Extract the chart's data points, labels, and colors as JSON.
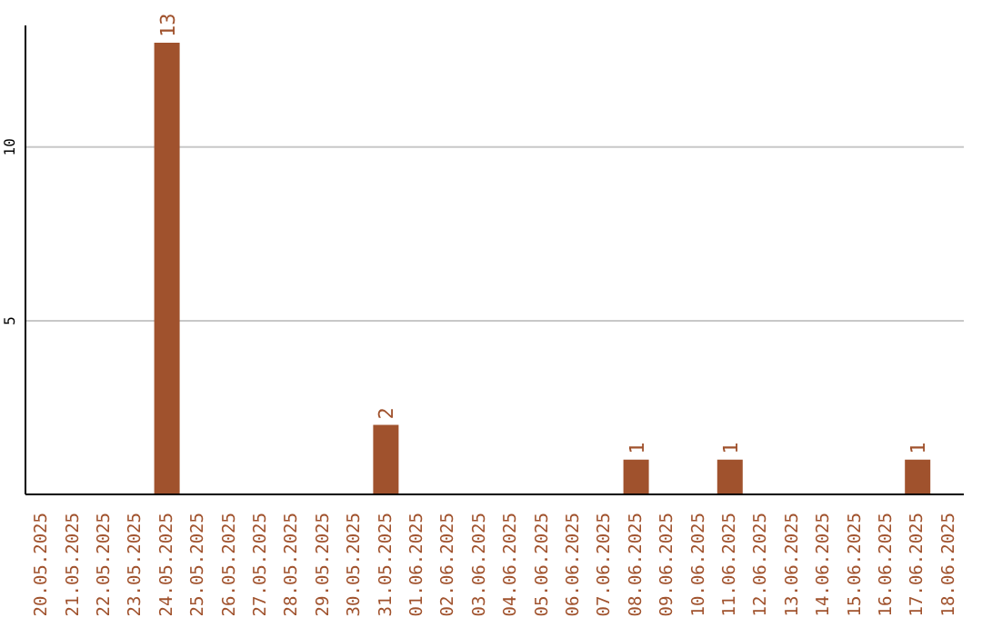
{
  "chart_data": {
    "type": "bar",
    "categories": [
      "20.05.2025",
      "21.05.2025",
      "22.05.2025",
      "23.05.2025",
      "24.05.2025",
      "25.05.2025",
      "26.05.2025",
      "27.05.2025",
      "28.05.2025",
      "29.05.2025",
      "30.05.2025",
      "31.05.2025",
      "01.06.2025",
      "02.06.2025",
      "03.06.2025",
      "04.06.2025",
      "05.06.2025",
      "06.06.2025",
      "07.06.2025",
      "08.06.2025",
      "09.06.2025",
      "10.06.2025",
      "11.06.2025",
      "12.06.2025",
      "13.06.2025",
      "14.06.2025",
      "15.06.2025",
      "16.06.2025",
      "17.06.2025",
      "18.06.2025"
    ],
    "values": [
      0,
      0,
      0,
      0,
      13,
      0,
      0,
      0,
      0,
      0,
      0,
      2,
      0,
      0,
      0,
      0,
      0,
      0,
      0,
      1,
      0,
      0,
      1,
      0,
      0,
      0,
      0,
      0,
      1,
      0
    ],
    "value_labels": [
      null,
      null,
      null,
      null,
      "13",
      null,
      null,
      null,
      null,
      null,
      null,
      "2",
      null,
      null,
      null,
      null,
      null,
      null,
      null,
      "1",
      null,
      null,
      "1",
      null,
      null,
      null,
      null,
      null,
      "1",
      null
    ],
    "color": "#a0522d",
    "ylim": [
      0,
      13.5
    ],
    "yticks": [
      5,
      10
    ],
    "grid": "y"
  }
}
